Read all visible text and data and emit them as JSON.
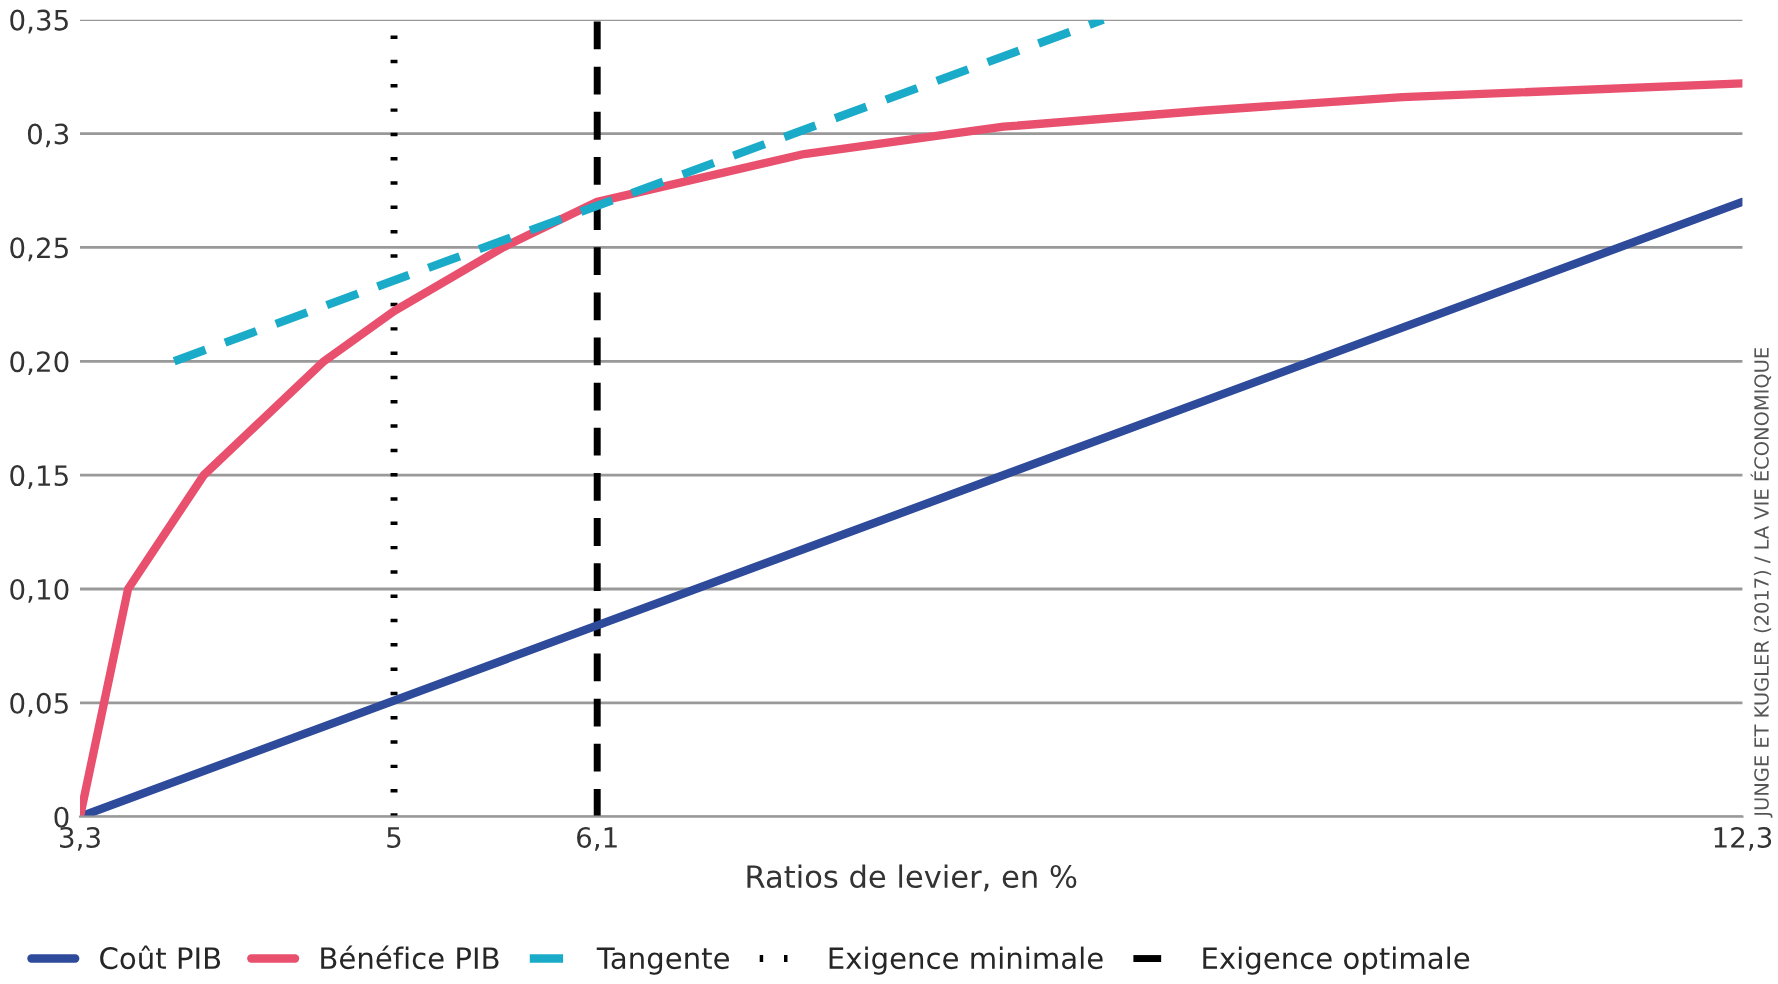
{
  "chart_data": {
    "type": "line",
    "xlabel": "Ratios de levier, en %",
    "annotations": [
      "JUNGE ET KUGLER (2017) / LA VIE ÉCONOMIQUE"
    ],
    "series": [
      {
        "name": "Coût PIB",
        "color": "#2e4a9a",
        "x": [
          3.3,
          12.3
        ],
        "values": [
          0,
          0.27
        ]
      },
      {
        "name": "Bénéfice PIB",
        "color": "#e8506e",
        "x": [
          3.3,
          3.43,
          3.56,
          3.97,
          4.62,
          5.0,
          5.59,
          6.1,
          7.22,
          8.3,
          9.38,
          10.46,
          12.3
        ],
        "values": [
          0,
          0.05,
          0.1,
          0.15,
          0.2,
          0.222,
          0.25,
          0.27,
          0.291,
          0.303,
          0.31,
          0.316,
          0.322
        ]
      },
      {
        "name": "Tangente",
        "color": "#1aabc8",
        "line_style": "dashed",
        "x": [
          3.81,
          8.84
        ],
        "values": [
          0.2,
          0.35
        ]
      }
    ],
    "ref_lines": [
      {
        "axis": "x",
        "value": 5,
        "label": "Exigence minimale",
        "color": "#000000",
        "line_style": "dotted"
      },
      {
        "axis": "x",
        "value": 6.1,
        "label": "Exigence optimale",
        "color": "#000000",
        "line_style": "dashed"
      }
    ],
    "xlim": [
      3.3,
      12.3
    ],
    "xticks": [
      {
        "value": 3.3,
        "label": "3,3"
      },
      5,
      {
        "value": 6.1,
        "label": "6,1"
      },
      {
        "value": 12.3,
        "label": "12,3"
      }
    ],
    "ylim": [
      0,
      0.35
    ],
    "yticks": [
      {
        "value": 0,
        "label": "0"
      },
      {
        "value": 0.05,
        "label": "0,05"
      },
      {
        "value": 0.1,
        "label": "0,10"
      },
      {
        "value": 0.15,
        "label": "0,15"
      },
      {
        "value": 0.2,
        "label": "0,20"
      },
      {
        "value": 0.25,
        "label": "0,25"
      },
      {
        "value": 0.3,
        "label": "0,3"
      },
      {
        "value": 0.35,
        "label": "0,35"
      }
    ],
    "grid": "y",
    "legend": "bottom"
  }
}
